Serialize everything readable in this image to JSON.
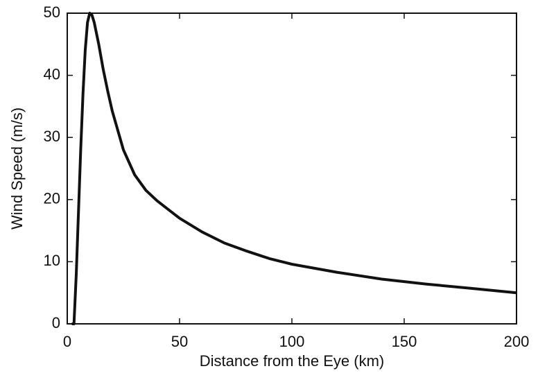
{
  "chart_data": {
    "type": "line",
    "x_label": "Distance from the Eye (km)",
    "y_label": "Wind Speed (m/s)",
    "x": [
      2,
      3,
      4,
      5,
      6,
      7,
      8,
      9,
      10,
      11,
      12,
      14,
      16,
      18,
      20,
      25,
      30,
      35,
      40,
      50,
      60,
      70,
      80,
      90,
      100,
      120,
      140,
      160,
      180,
      200
    ],
    "y": [
      0,
      0,
      8,
      18,
      28,
      37,
      44,
      48.5,
      50,
      49.7,
      48.5,
      45,
      41,
      37.5,
      34.3,
      28,
      24,
      21.5,
      19.8,
      17,
      14.8,
      13,
      11.7,
      10.5,
      9.6,
      8.3,
      7.2,
      6.4,
      5.7,
      5.0
    ],
    "color": "#111111",
    "xlim": [
      0,
      200
    ],
    "xticks": [
      0,
      50,
      100,
      150,
      200
    ],
    "ylim": [
      0,
      50
    ],
    "yticks": [
      0,
      10,
      20,
      30,
      40,
      50
    ],
    "grid": false
  }
}
